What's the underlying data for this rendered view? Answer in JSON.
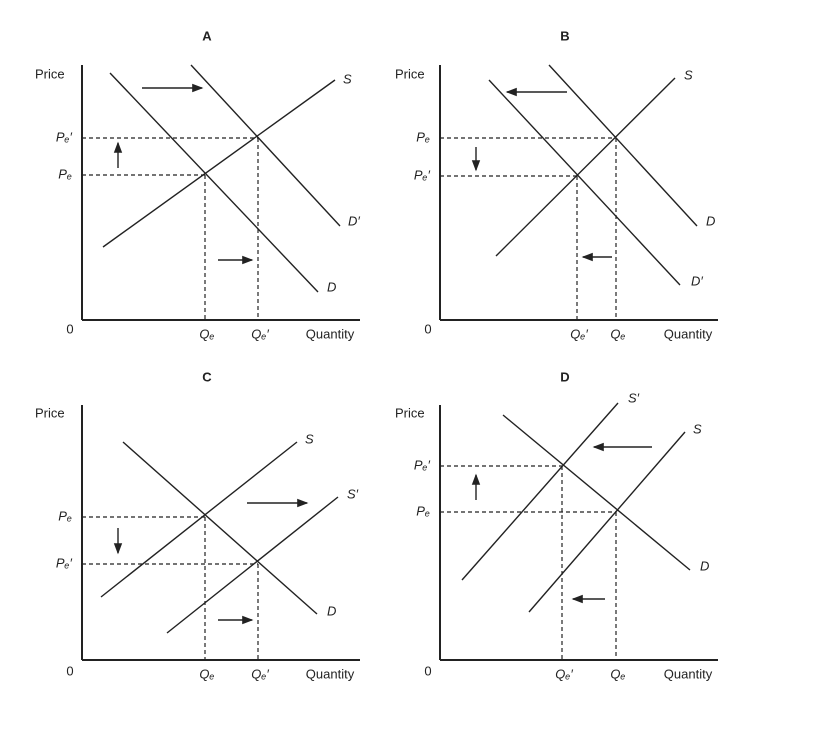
{
  "panels": [
    {
      "title": "A",
      "y_label": "Price",
      "x_label": "Quantity",
      "origin": "0",
      "curves": [
        "S",
        "D",
        "D′"
      ],
      "price_labels": [
        "Pₑ′",
        "Pₑ"
      ],
      "quantity_labels": [
        "Qₑ",
        "Qₑ′"
      ]
    },
    {
      "title": "B",
      "y_label": "Price",
      "x_label": "Quantity",
      "origin": "0",
      "curves": [
        "S",
        "D",
        "D′"
      ],
      "price_labels": [
        "Pₑ",
        "Pₑ′"
      ],
      "quantity_labels": [
        "Qₑ′",
        "Qₑ"
      ]
    },
    {
      "title": "C",
      "y_label": "Price",
      "x_label": "Quantity",
      "origin": "0",
      "curves": [
        "S",
        "S′",
        "D"
      ],
      "price_labels": [
        "Pₑ",
        "Pₑ′"
      ],
      "quantity_labels": [
        "Qₑ",
        "Qₑ′"
      ]
    },
    {
      "title": "D",
      "y_label": "Price",
      "x_label": "Quantity",
      "origin": "0",
      "curves": [
        "S′",
        "S",
        "D"
      ],
      "price_labels": [
        "Pₑ′",
        "Pₑ"
      ],
      "quantity_labels": [
        "Qₑ′",
        "Qₑ"
      ]
    }
  ]
}
